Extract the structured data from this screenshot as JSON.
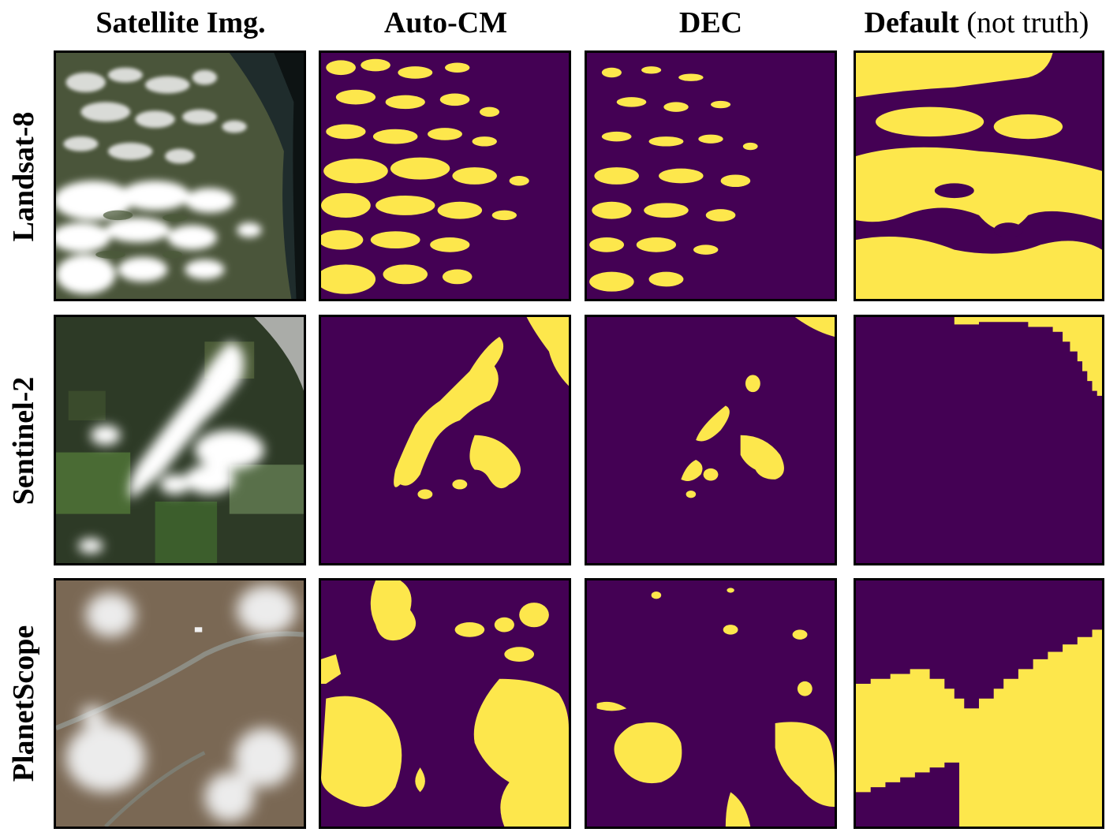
{
  "columns": {
    "satellite": "Satellite Img.",
    "autocm": "Auto-CM",
    "dec": "DEC",
    "default_bold": "Default",
    "default_note": " (not truth)"
  },
  "rows": {
    "landsat": "Landsat-8",
    "sentinel": "Sentinel-2",
    "planet": "PlanetScope"
  },
  "colors": {
    "mask_background": "#440154",
    "mask_cloud": "#fde74c"
  }
}
